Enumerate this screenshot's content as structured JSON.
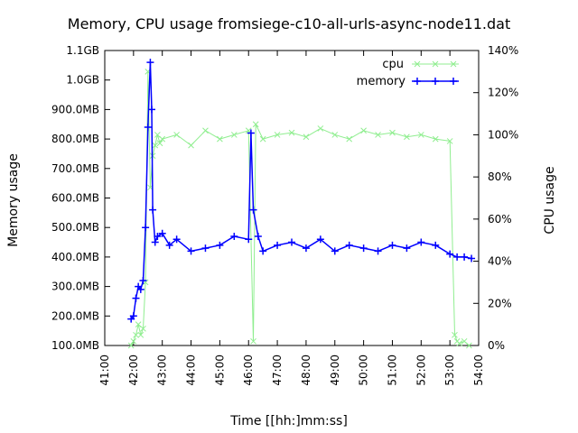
{
  "chart_data": {
    "type": "line",
    "title": "Memory, CPU usage fromsiege-c10-all-urls-async-node11.dat",
    "xlabel": "Time [[hh:]mm:ss]",
    "ylabel": "Memory usage",
    "y2label": "CPU usage",
    "grid": false,
    "legend_position": "top-right",
    "x_ticks": [
      "41:00",
      "42:00",
      "43:00",
      "44:00",
      "45:00",
      "46:00",
      "47:00",
      "48:00",
      "49:00",
      "50:00",
      "51:00",
      "52:00",
      "53:00",
      "54:00"
    ],
    "y_ticks": [
      "100.0MB",
      "200.0MB",
      "300.0MB",
      "400.0MB",
      "500.0MB",
      "600.0MB",
      "700.0MB",
      "800.0MB",
      "900.0MB",
      "1.0GB",
      "1.1GB"
    ],
    "y2_ticks": [
      "0%",
      "20%",
      "40%",
      "60%",
      "80%",
      "100%",
      "120%",
      "140%"
    ],
    "xlim": [
      "41:00",
      "54:00"
    ],
    "ylim_mb": [
      100,
      1100
    ],
    "y2lim_pct": [
      0,
      140
    ],
    "series": [
      {
        "name": "cpu",
        "color": "#90ee90",
        "marker": "x",
        "axis": "right",
        "x": [
          "41:55",
          "42:00",
          "42:05",
          "42:10",
          "42:15",
          "42:20",
          "42:25",
          "42:30",
          "42:35",
          "42:40",
          "42:45",
          "42:50",
          "42:55",
          "43:00",
          "43:30",
          "44:00",
          "44:30",
          "45:00",
          "45:30",
          "46:00",
          "46:10",
          "46:15",
          "46:30",
          "47:00",
          "47:30",
          "48:00",
          "48:30",
          "49:00",
          "49:30",
          "50:00",
          "50:30",
          "51:00",
          "51:30",
          "52:00",
          "52:30",
          "53:00",
          "53:10",
          "53:15",
          "53:20",
          "53:30",
          "53:40"
        ],
        "values": [
          0,
          2,
          5,
          10,
          5,
          8,
          30,
          130,
          75,
          90,
          95,
          100,
          96,
          98,
          100,
          95,
          102,
          98,
          100,
          102,
          2,
          105,
          98,
          100,
          101,
          99,
          103,
          100,
          98,
          102,
          100,
          101,
          99,
          100,
          98,
          97,
          5,
          2,
          1,
          2,
          0
        ]
      },
      {
        "name": "memory",
        "color": "#0000ff",
        "marker": "+",
        "axis": "left",
        "x": [
          "41:55",
          "42:00",
          "42:05",
          "42:10",
          "42:15",
          "42:20",
          "42:25",
          "42:30",
          "42:35",
          "42:38",
          "42:40",
          "42:45",
          "42:50",
          "43:00",
          "43:15",
          "43:30",
          "44:00",
          "44:30",
          "45:00",
          "45:30",
          "46:00",
          "46:05",
          "46:10",
          "46:20",
          "46:30",
          "47:00",
          "47:30",
          "48:00",
          "48:30",
          "49:00",
          "49:30",
          "50:00",
          "50:30",
          "51:00",
          "51:30",
          "52:00",
          "52:30",
          "53:00",
          "53:15",
          "53:30",
          "53:45"
        ],
        "values": [
          190,
          200,
          260,
          300,
          290,
          320,
          500,
          840,
          1060,
          900,
          560,
          450,
          470,
          480,
          440,
          460,
          420,
          430,
          440,
          470,
          460,
          820,
          560,
          470,
          420,
          440,
          450,
          430,
          460,
          420,
          440,
          430,
          420,
          440,
          430,
          450,
          440,
          410,
          400,
          400,
          395
        ]
      }
    ]
  }
}
